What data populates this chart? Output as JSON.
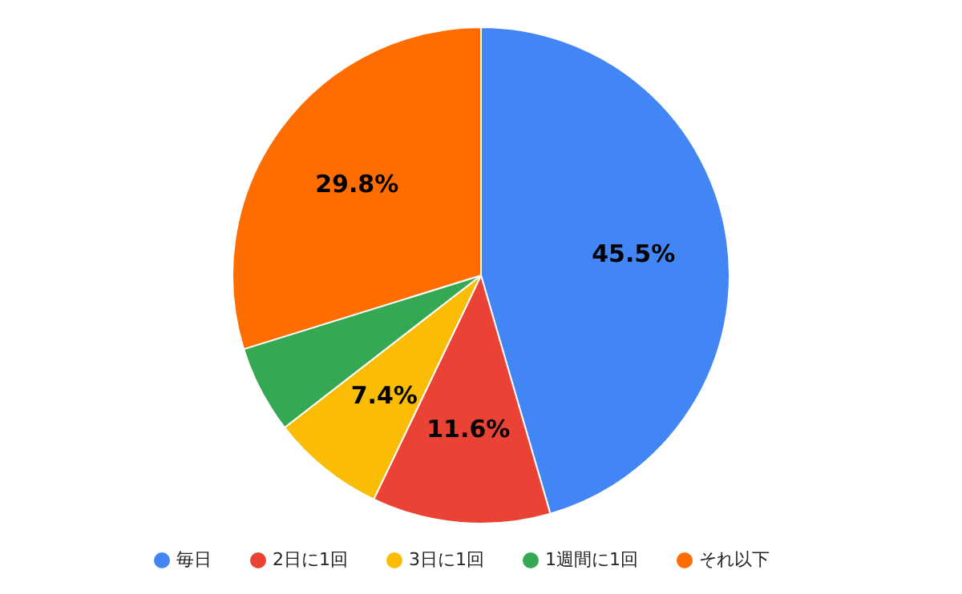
{
  "chart_data": {
    "type": "pie",
    "categories": [
      "毎日",
      "2日に1回",
      "3日に1回",
      "1週間に1回",
      "それ以下"
    ],
    "values": [
      45.5,
      11.6,
      7.4,
      5.7,
      29.8
    ],
    "colors": [
      "#4285f4",
      "#ea4335",
      "#fbbc04",
      "#34a853",
      "#ff6d01"
    ],
    "value_labels": [
      "45.5%",
      "11.6%",
      "7.4%",
      null,
      "29.8%"
    ],
    "legend": "bottom"
  }
}
